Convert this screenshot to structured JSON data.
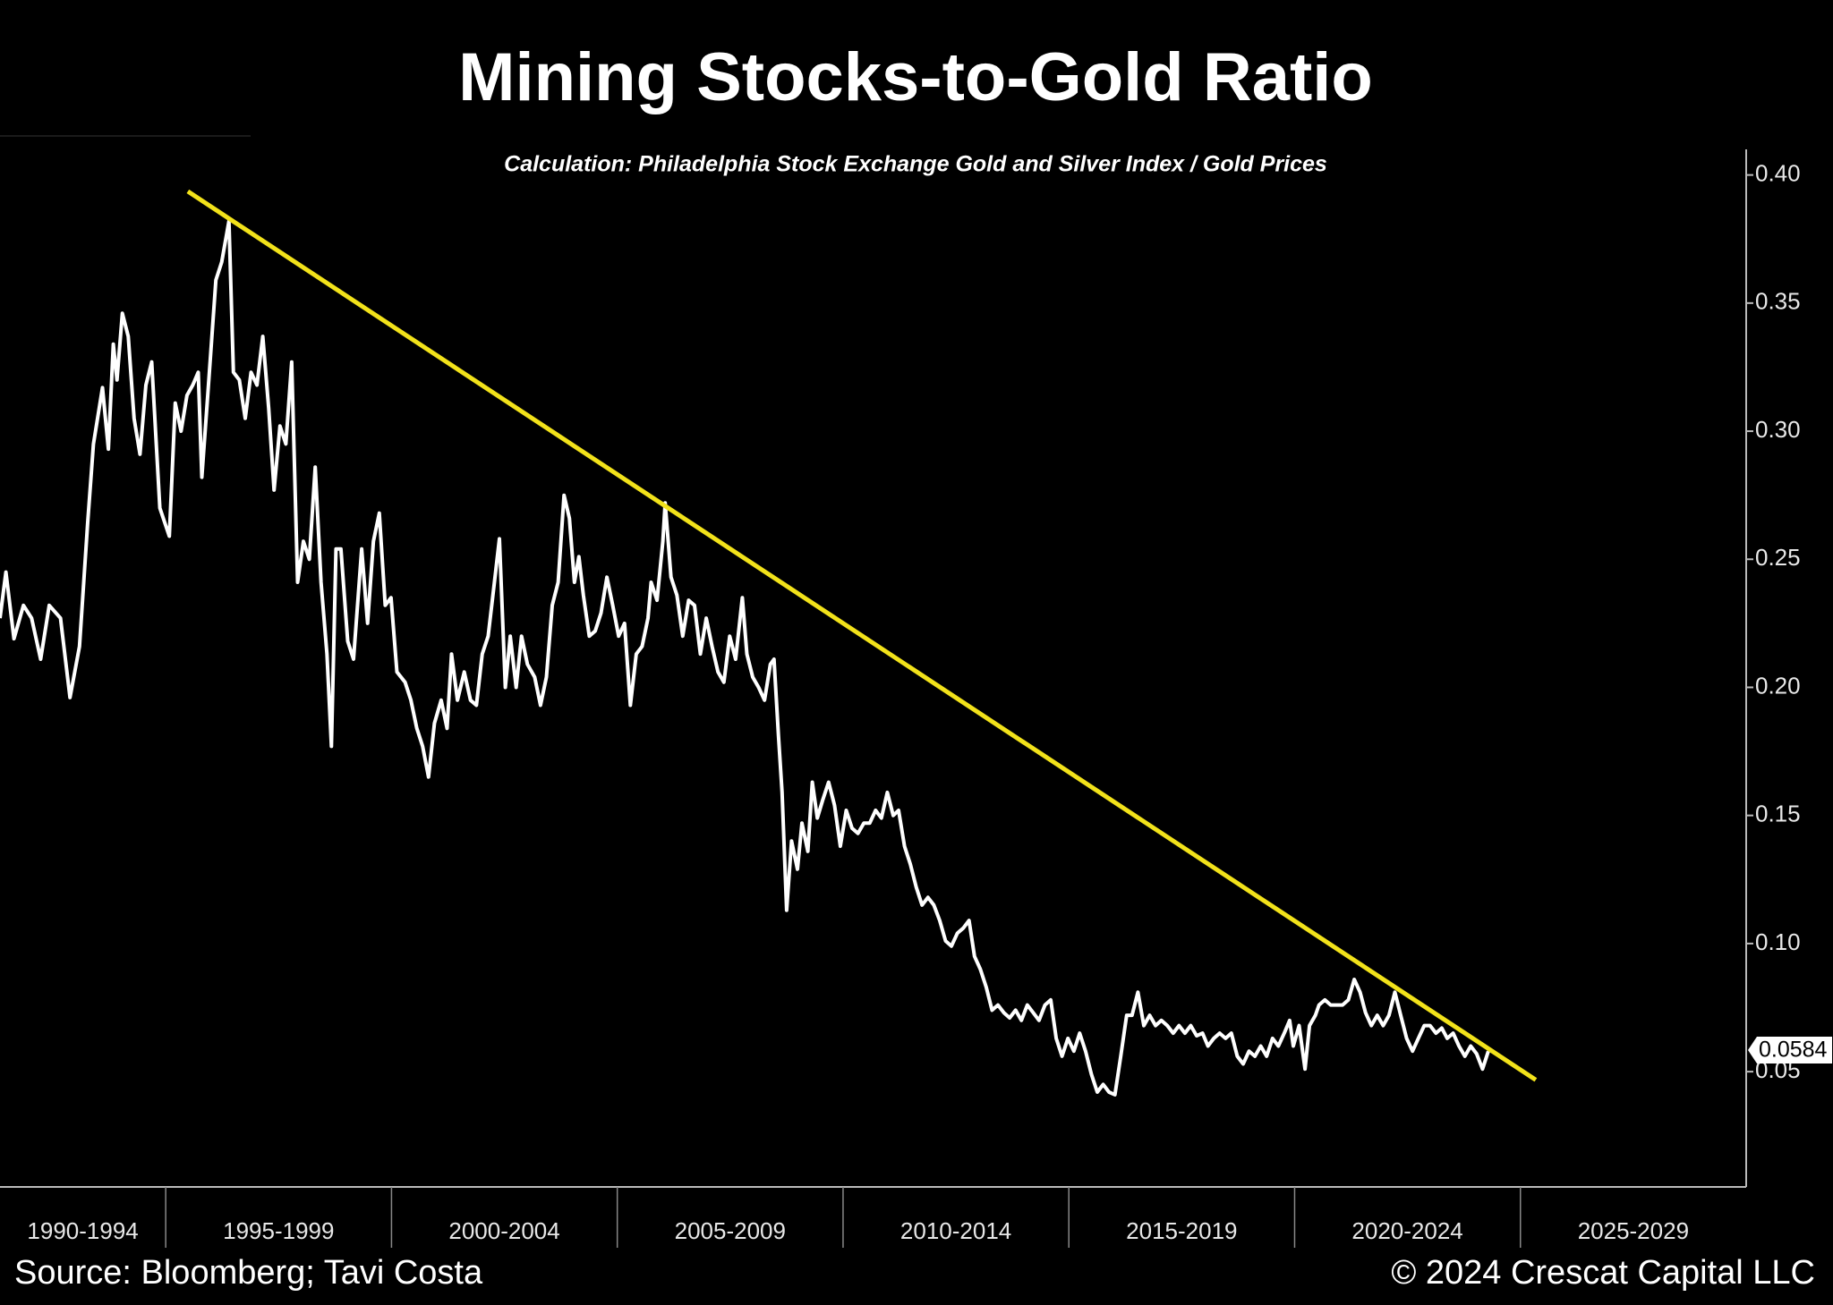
{
  "chart_data": {
    "type": "line",
    "title": "Mining Stocks-to-Gold Ratio",
    "subtitle": "Calculation: Philadelphia Stock Exchange Gold and Silver Index / Gold Prices",
    "source": "Source: Bloomberg; Tavi Costa",
    "copyright": "© 2024 Crescat Capital LLC",
    "xlim": [
      1991.33,
      2030
    ],
    "xticks": [
      {
        "value": 1990,
        "label": "1990-1994"
      },
      {
        "value": 1995,
        "label": "1995-1999"
      },
      {
        "value": 2000,
        "label": "2000-2004"
      },
      {
        "value": 2005,
        "label": "2005-2009"
      },
      {
        "value": 2010,
        "label": "2010-2014"
      },
      {
        "value": 2015,
        "label": "2015-2019"
      },
      {
        "value": 2020,
        "label": "2020-2024"
      },
      {
        "value": 2025,
        "label": "2025-2029"
      }
    ],
    "ylim": [
      0.005,
      0.41
    ],
    "yticks": [
      0.05,
      {
        "value": 0.1,
        "label": "0.10"
      },
      0.15,
      {
        "value": 0.2,
        "label": "0.20"
      },
      0.25,
      {
        "value": 0.3,
        "label": "0.30"
      },
      0.35,
      {
        "value": 0.4,
        "label": "0.40"
      }
    ],
    "last_value": 0.0584,
    "x": [
      1991.33,
      1991.46,
      1991.64,
      1991.85,
      1992.03,
      1992.23,
      1992.42,
      1992.67,
      1992.88,
      1993.09,
      1993.27,
      1993.4,
      1993.6,
      1993.73,
      1993.84,
      1993.92,
      1994.04,
      1994.17,
      1994.3,
      1994.43,
      1994.56,
      1994.69,
      1994.87,
      1995.08,
      1995.21,
      1995.34,
      1995.47,
      1995.6,
      1995.72,
      1995.8,
      1995.93,
      1996.11,
      1996.24,
      1996.4,
      1996.5,
      1996.63,
      1996.76,
      1996.89,
      1997.02,
      1997.15,
      1997.28,
      1997.4,
      1997.53,
      1997.66,
      1997.79,
      1997.92,
      1998.05,
      1998.18,
      1998.31,
      1998.44,
      1998.57,
      1998.67,
      1998.77,
      1998.88,
      1999.03,
      1999.16,
      1999.34,
      1999.47,
      1999.6,
      1999.73,
      1999.86,
      1999.99,
      2000.12,
      2000.3,
      2000.43,
      2000.56,
      2000.69,
      2000.82,
      2000.95,
      2001.1,
      2001.23,
      2001.33,
      2001.46,
      2001.61,
      2001.75,
      2001.88,
      2002.01,
      2002.14,
      2002.26,
      2002.39,
      2002.52,
      2002.63,
      2002.76,
      2002.88,
      2003.01,
      2003.17,
      2003.3,
      2003.43,
      2003.56,
      2003.69,
      2003.82,
      2003.94,
      2004.05,
      2004.15,
      2004.25,
      2004.38,
      2004.51,
      2004.64,
      2004.77,
      2004.9,
      2005.03,
      2005.16,
      2005.29,
      2005.42,
      2005.55,
      2005.68,
      2005.75,
      2005.88,
      2006.01,
      2006.06,
      2006.19,
      2006.32,
      2006.45,
      2006.58,
      2006.71,
      2006.84,
      2006.97,
      2007.1,
      2007.23,
      2007.36,
      2007.49,
      2007.62,
      2007.77,
      2007.87,
      2008.0,
      2008.13,
      2008.26,
      2008.39,
      2008.47,
      2008.57,
      2008.65,
      2008.75,
      2008.86,
      2008.99,
      2009.09,
      2009.22,
      2009.32,
      2009.43,
      2009.55,
      2009.68,
      2009.81,
      2009.94,
      2010.07,
      2010.2,
      2010.33,
      2010.46,
      2010.59,
      2010.72,
      2010.85,
      2010.98,
      2011.11,
      2011.23,
      2011.36,
      2011.49,
      2011.62,
      2011.75,
      2011.88,
      2012.01,
      2012.14,
      2012.27,
      2012.4,
      2012.53,
      2012.66,
      2012.79,
      2012.91,
      2013.04,
      2013.17,
      2013.3,
      2013.43,
      2013.56,
      2013.69,
      2013.82,
      2013.95,
      2014.08,
      2014.21,
      2014.34,
      2014.47,
      2014.6,
      2014.72,
      2014.85,
      2014.98,
      2015.11,
      2015.24,
      2015.37,
      2015.5,
      2015.63,
      2015.76,
      2015.89,
      2016.02,
      2016.15,
      2016.28,
      2016.4,
      2016.53,
      2016.66,
      2016.79,
      2016.92,
      2017.05,
      2017.18,
      2017.31,
      2017.44,
      2017.57,
      2017.7,
      2017.83,
      2017.96,
      2018.08,
      2018.21,
      2018.34,
      2018.47,
      2018.6,
      2018.73,
      2018.86,
      2018.99,
      2019.12,
      2019.25,
      2019.38,
      2019.51,
      2019.64,
      2019.77,
      2019.89,
      2019.97,
      2020.1,
      2020.23,
      2020.33,
      2020.46,
      2020.54,
      2020.67,
      2020.8,
      2020.93,
      2021.06,
      2021.19,
      2021.32,
      2021.45,
      2021.57,
      2021.7,
      2021.83,
      2021.96,
      2022.09,
      2022.22,
      2022.35,
      2022.48,
      2022.61,
      2022.74,
      2022.87,
      2023.0,
      2023.13,
      2023.26,
      2023.38,
      2023.51,
      2023.64,
      2023.77,
      2023.9,
      2024.03,
      2024.16,
      2024.29
    ],
    "series": [
      {
        "color": "#ffffff",
        "values": [
          0.227,
          0.245,
          0.219,
          0.232,
          0.227,
          0.211,
          0.232,
          0.227,
          0.196,
          0.216,
          0.264,
          0.295,
          0.317,
          0.293,
          0.334,
          0.32,
          0.346,
          0.337,
          0.305,
          0.291,
          0.318,
          0.327,
          0.27,
          0.259,
          0.311,
          0.3,
          0.314,
          0.318,
          0.323,
          0.282,
          0.314,
          0.359,
          0.366,
          0.382,
          0.323,
          0.32,
          0.305,
          0.323,
          0.318,
          0.337,
          0.309,
          0.277,
          0.302,
          0.295,
          0.327,
          0.241,
          0.257,
          0.25,
          0.286,
          0.241,
          0.213,
          0.177,
          0.254,
          0.254,
          0.218,
          0.211,
          0.254,
          0.225,
          0.257,
          0.268,
          0.232,
          0.235,
          0.206,
          0.202,
          0.195,
          0.184,
          0.177,
          0.165,
          0.186,
          0.195,
          0.184,
          0.213,
          0.195,
          0.206,
          0.195,
          0.193,
          0.213,
          0.22,
          0.238,
          0.258,
          0.2,
          0.22,
          0.2,
          0.22,
          0.209,
          0.204,
          0.193,
          0.204,
          0.232,
          0.241,
          0.275,
          0.266,
          0.241,
          0.251,
          0.236,
          0.22,
          0.222,
          0.229,
          0.243,
          0.232,
          0.22,
          0.225,
          0.193,
          0.213,
          0.216,
          0.227,
          0.241,
          0.234,
          0.257,
          0.272,
          0.243,
          0.236,
          0.22,
          0.234,
          0.232,
          0.213,
          0.227,
          0.216,
          0.206,
          0.202,
          0.22,
          0.211,
          0.235,
          0.213,
          0.204,
          0.2,
          0.195,
          0.209,
          0.211,
          0.181,
          0.159,
          0.113,
          0.14,
          0.129,
          0.147,
          0.136,
          0.163,
          0.149,
          0.156,
          0.163,
          0.154,
          0.138,
          0.152,
          0.145,
          0.143,
          0.147,
          0.147,
          0.152,
          0.149,
          0.159,
          0.15,
          0.152,
          0.138,
          0.131,
          0.122,
          0.115,
          0.118,
          0.115,
          0.109,
          0.101,
          0.099,
          0.104,
          0.106,
          0.109,
          0.095,
          0.09,
          0.083,
          0.074,
          0.076,
          0.073,
          0.071,
          0.074,
          0.07,
          0.076,
          0.073,
          0.07,
          0.076,
          0.078,
          0.063,
          0.056,
          0.063,
          0.058,
          0.065,
          0.058,
          0.049,
          0.042,
          0.045,
          0.042,
          0.041,
          0.056,
          0.072,
          0.072,
          0.081,
          0.068,
          0.072,
          0.068,
          0.07,
          0.068,
          0.065,
          0.068,
          0.065,
          0.068,
          0.064,
          0.065,
          0.06,
          0.063,
          0.065,
          0.063,
          0.065,
          0.056,
          0.053,
          0.058,
          0.056,
          0.06,
          0.056,
          0.063,
          0.06,
          0.065,
          0.07,
          0.06,
          0.068,
          0.051,
          0.068,
          0.072,
          0.076,
          0.078,
          0.076,
          0.076,
          0.076,
          0.078,
          0.086,
          0.081,
          0.073,
          0.068,
          0.072,
          0.068,
          0.072,
          0.081,
          0.072,
          0.063,
          0.058,
          0.063,
          0.068,
          0.068,
          0.065,
          0.067,
          0.063,
          0.065,
          0.06,
          0.056,
          0.06,
          0.057,
          0.051,
          0.058
        ]
      }
    ],
    "trendline": {
      "color": "#f2e21a",
      "x": [
        1995.49,
        2025.34
      ],
      "y": [
        0.3936,
        0.0468
      ]
    }
  }
}
